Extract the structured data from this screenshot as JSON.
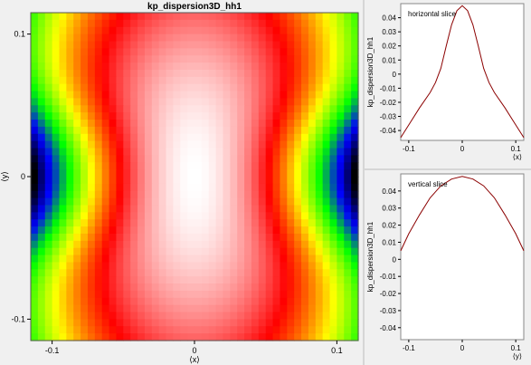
{
  "main_chart": {
    "title": "kp_dispersion3D_hh1",
    "xlabel": "⟨x⟩",
    "ylabel": "⟨y⟩",
    "x_ticks": [
      {
        "value": -0.1,
        "label": "-0.1"
      },
      {
        "value": 0,
        "label": "0"
      },
      {
        "value": 0.1,
        "label": "0.1"
      }
    ],
    "y_ticks": [
      {
        "value": 0.1,
        "label": "0.1"
      },
      {
        "value": 0,
        "label": "0"
      },
      {
        "value": -0.1,
        "label": "-0.1"
      }
    ]
  },
  "top_chart": {
    "annotation": "horizontal slice",
    "ylabel": "kp_dispersion3D_hh1",
    "xlabel": "⟨x⟩"
  },
  "bottom_chart": {
    "annotation": "vertical slice",
    "ylabel": "kp_dispersion3D_hh1",
    "xlabel": "⟨y⟩"
  },
  "chart_data": [
    {
      "type": "heatmap",
      "title": "kp_dispersion3D_hh1",
      "xlabel": "⟨x⟩",
      "ylabel": "⟨y⟩",
      "xlim": [
        -0.115,
        0.115
      ],
      "ylim": [
        -0.115,
        0.115
      ],
      "grid_resolution": [
        46,
        46
      ],
      "value_range": [
        -0.045,
        0.048
      ],
      "colormap": [
        "#000000",
        "#0000ff",
        "#00ff00",
        "#ffff00",
        "#ff0000",
        "#ffffff"
      ],
      "structure": "peanut-shaped maximum (~0.048) centered at (0,0), elongated along y; minimum (black) at left and right edges near y=0"
    },
    {
      "type": "line",
      "annotation": "horizontal slice",
      "ylabel": "kp_dispersion3D_hh1",
      "xlabel": "⟨x⟩",
      "xlim": [
        -0.115,
        0.115
      ],
      "ylim": [
        -0.047,
        0.05
      ],
      "x_ticks": [
        -0.1,
        0,
        0.1
      ],
      "y_ticks": [
        0.04,
        0.03,
        0.02,
        0.01,
        0,
        -0.01,
        -0.02,
        -0.03,
        -0.04
      ],
      "line_color": "#8b0000",
      "x": [
        -0.115,
        -0.1,
        -0.08,
        -0.06,
        -0.05,
        -0.04,
        -0.03,
        -0.02,
        -0.01,
        0,
        0.01,
        0.02,
        0.03,
        0.04,
        0.05,
        0.06,
        0.08,
        0.1,
        0.115
      ],
      "y": [
        -0.045,
        -0.036,
        -0.024,
        -0.013,
        -0.006,
        0.004,
        0.02,
        0.035,
        0.045,
        0.0485,
        0.045,
        0.035,
        0.02,
        0.004,
        -0.006,
        -0.013,
        -0.024,
        -0.036,
        -0.045
      ]
    },
    {
      "type": "line",
      "annotation": "vertical slice",
      "ylabel": "kp_dispersion3D_hh1",
      "xlabel": "⟨y⟩",
      "xlim": [
        -0.115,
        0.115
      ],
      "ylim": [
        -0.047,
        0.05
      ],
      "x_ticks": [
        -0.1,
        0,
        0.1
      ],
      "y_ticks": [
        0.04,
        0.03,
        0.02,
        0.01,
        0,
        -0.01,
        -0.02,
        -0.03,
        -0.04
      ],
      "line_color": "#8b0000",
      "x": [
        -0.115,
        -0.1,
        -0.08,
        -0.06,
        -0.04,
        -0.02,
        0,
        0.02,
        0.04,
        0.06,
        0.08,
        0.1,
        0.115
      ],
      "y": [
        0.005,
        0.015,
        0.026,
        0.036,
        0.043,
        0.047,
        0.0485,
        0.047,
        0.043,
        0.036,
        0.026,
        0.015,
        0.005
      ]
    }
  ]
}
